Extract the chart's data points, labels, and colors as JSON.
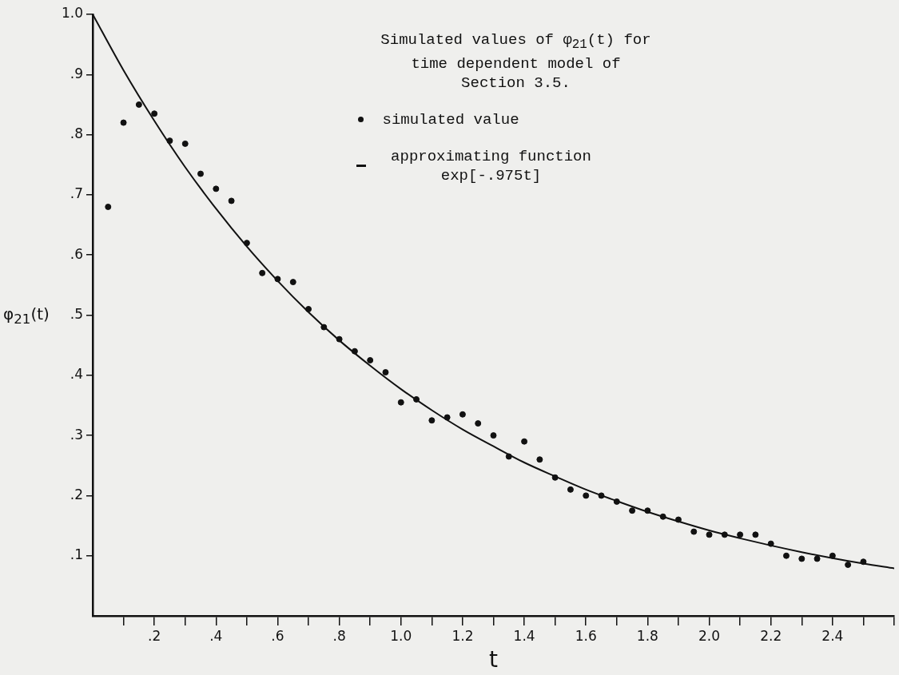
{
  "chart_data": {
    "type": "scatter",
    "title": "Simulated values of φ$_{21}$(t) for time dependent model of Section 3.5.",
    "xlabel": "t",
    "ylabel": "φ$_{21}$(t)",
    "xlim": [
      0,
      2.6
    ],
    "ylim": [
      0,
      1.0
    ],
    "xticks": [
      {
        "value": 0.1,
        "label": null
      },
      {
        "value": 0.2,
        "label": ".2"
      },
      {
        "value": 0.3,
        "label": null
      },
      {
        "value": 0.4,
        "label": ".4"
      },
      {
        "value": 0.5,
        "label": null
      },
      {
        "value": 0.6,
        "label": ".6"
      },
      {
        "value": 0.7,
        "label": null
      },
      {
        "value": 0.8,
        "label": ".8"
      },
      {
        "value": 0.9,
        "label": null
      },
      {
        "value": 1.0,
        "label": "1.0"
      },
      {
        "value": 1.1,
        "label": null
      },
      {
        "value": 1.2,
        "label": "1.2"
      },
      {
        "value": 1.3,
        "label": null
      },
      {
        "value": 1.4,
        "label": "1.4"
      },
      {
        "value": 1.5,
        "label": null
      },
      {
        "value": 1.6,
        "label": "1.6"
      },
      {
        "value": 1.7,
        "label": null
      },
      {
        "value": 1.8,
        "label": "1.8"
      },
      {
        "value": 1.9,
        "label": null
      },
      {
        "value": 2.0,
        "label": "2.0"
      },
      {
        "value": 2.1,
        "label": null
      },
      {
        "value": 2.2,
        "label": "2.2"
      },
      {
        "value": 2.3,
        "label": null
      },
      {
        "value": 2.4,
        "label": "2.4"
      },
      {
        "value": 2.5,
        "label": null
      },
      {
        "value": 2.6,
        "label": null
      }
    ],
    "yticks": [
      {
        "value": 0.1,
        "label": ".1"
      },
      {
        "value": 0.2,
        "label": ".2"
      },
      {
        "value": 0.3,
        "label": ".3"
      },
      {
        "value": 0.4,
        "label": ".4"
      },
      {
        "value": 0.5,
        "label": ".5"
      },
      {
        "value": 0.6,
        "label": ".6"
      },
      {
        "value": 0.7,
        "label": ".7"
      },
      {
        "value": 0.8,
        "label": ".8"
      },
      {
        "value": 0.9,
        "label": ".9"
      },
      {
        "value": 1.0,
        "label": "1.0"
      }
    ],
    "legend": "top",
    "series": [
      {
        "name": "simulated value",
        "type": "scatter",
        "marker": "circle",
        "color": "#111111",
        "x": [
          0.05,
          0.1,
          0.15,
          0.2,
          0.25,
          0.3,
          0.35,
          0.4,
          0.45,
          0.5,
          0.55,
          0.6,
          0.65,
          0.7,
          0.75,
          0.8,
          0.85,
          0.9,
          0.95,
          1.0,
          1.05,
          1.1,
          1.15,
          1.2,
          1.25,
          1.3,
          1.35,
          1.4,
          1.45,
          1.5,
          1.55,
          1.6,
          1.65,
          1.7,
          1.75,
          1.8,
          1.85,
          1.9,
          1.95,
          2.0,
          2.05,
          2.1,
          2.15,
          2.2,
          2.25,
          2.3,
          2.35,
          2.4,
          2.45,
          2.5
        ],
        "values": [
          0.68,
          0.82,
          0.85,
          0.835,
          0.79,
          0.785,
          0.735,
          0.71,
          0.69,
          0.62,
          0.57,
          0.56,
          0.555,
          0.51,
          0.48,
          0.46,
          0.44,
          0.425,
          0.405,
          0.355,
          0.36,
          0.325,
          0.33,
          0.335,
          0.32,
          0.3,
          0.265,
          0.29,
          0.26,
          0.23,
          0.21,
          0.2,
          0.2,
          0.19,
          0.175,
          0.175,
          0.165,
          0.16,
          0.14,
          0.135,
          0.135,
          0.135,
          0.135,
          0.12,
          0.1,
          0.095,
          0.095,
          0.1,
          0.085,
          0.09
        ]
      },
      {
        "name": "approximating function exp[-.975t]",
        "type": "line",
        "marker": "none",
        "line_style": "solid",
        "color": "#111111",
        "x": [
          0,
          0.1,
          0.2,
          0.3,
          0.4,
          0.5,
          0.6,
          0.7,
          0.8,
          0.9,
          1.0,
          1.1,
          1.2,
          1.3,
          1.4,
          1.5,
          1.6,
          1.7,
          1.8,
          1.9,
          2.0,
          2.1,
          2.2,
          2.3,
          2.4,
          2.5,
          2.6
        ],
        "values": [
          1.0,
          0.907,
          0.823,
          0.746,
          0.677,
          0.614,
          0.557,
          0.505,
          0.458,
          0.416,
          0.377,
          0.342,
          0.31,
          0.282,
          0.255,
          0.232,
          0.21,
          0.191,
          0.173,
          0.157,
          0.142,
          0.129,
          0.117,
          0.106,
          0.096,
          0.087,
          0.079
        ]
      }
    ]
  }
}
